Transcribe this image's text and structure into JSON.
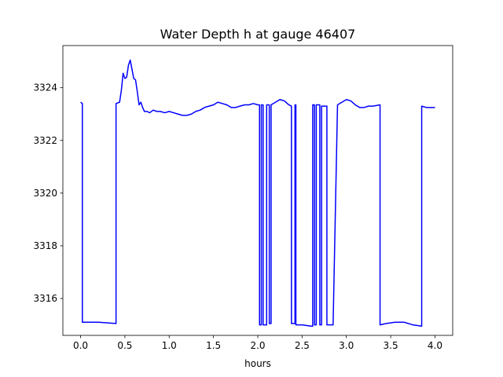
{
  "chart_data": {
    "type": "line",
    "title": "Water Depth h at gauge 46407",
    "xlabel": "hours",
    "ylabel": "",
    "xlim": [
      -0.2,
      4.2
    ],
    "ylim": [
      3314.6,
      3325.6
    ],
    "xticks": [
      0.0,
      0.5,
      1.0,
      1.5,
      2.0,
      2.5,
      3.0,
      3.5,
      4.0
    ],
    "xtick_labels": [
      "0.0",
      "0.5",
      "1.0",
      "1.5",
      "2.0",
      "2.5",
      "3.0",
      "3.5",
      "4.0"
    ],
    "yticks": [
      3316,
      3318,
      3320,
      3322,
      3324
    ],
    "ytick_labels": [
      "3316",
      "3318",
      "3320",
      "3322",
      "3324"
    ],
    "grid": false,
    "series": [
      {
        "color": "#0000ff",
        "x": [
          0.0,
          0.02,
          0.02,
          0.2,
          0.4,
          0.4,
          0.44,
          0.46,
          0.48,
          0.5,
          0.52,
          0.54,
          0.56,
          0.58,
          0.6,
          0.62,
          0.64,
          0.66,
          0.68,
          0.7,
          0.72,
          0.75,
          0.78,
          0.82,
          0.86,
          0.9,
          0.95,
          1.0,
          1.05,
          1.1,
          1.15,
          1.2,
          1.25,
          1.3,
          1.35,
          1.4,
          1.45,
          1.5,
          1.55,
          1.6,
          1.65,
          1.7,
          1.75,
          1.8,
          1.85,
          1.9,
          1.95,
          2.0,
          2.02,
          2.02,
          2.04,
          2.04,
          2.06,
          2.06,
          2.1,
          2.1,
          2.13,
          2.13,
          2.15,
          2.15,
          2.2,
          2.25,
          2.3,
          2.35,
          2.38,
          2.38,
          2.42,
          2.42,
          2.43,
          2.43,
          2.5,
          2.6,
          2.62,
          2.62,
          2.64,
          2.64,
          2.66,
          2.66,
          2.7,
          2.7,
          2.72,
          2.72,
          2.78,
          2.78,
          2.85,
          2.9,
          2.95,
          3.0,
          3.05,
          3.1,
          3.15,
          3.2,
          3.25,
          3.3,
          3.38,
          3.38,
          3.45,
          3.55,
          3.65,
          3.75,
          3.85,
          3.85,
          3.9,
          4.0
        ],
        "y": [
          3323.45,
          3323.4,
          3315.1,
          3315.1,
          3315.05,
          3323.4,
          3323.45,
          3323.9,
          3324.55,
          3324.35,
          3324.4,
          3324.85,
          3325.05,
          3324.7,
          3324.35,
          3324.3,
          3323.85,
          3323.35,
          3323.45,
          3323.25,
          3323.1,
          3323.1,
          3323.05,
          3323.15,
          3323.1,
          3323.1,
          3323.05,
          3323.1,
          3323.05,
          3323.0,
          3322.95,
          3322.95,
          3323.0,
          3323.1,
          3323.15,
          3323.25,
          3323.3,
          3323.35,
          3323.45,
          3323.4,
          3323.35,
          3323.25,
          3323.25,
          3323.3,
          3323.35,
          3323.35,
          3323.4,
          3323.35,
          3323.35,
          3315.0,
          3315.0,
          3323.35,
          3323.35,
          3315.0,
          3315.0,
          3323.35,
          3323.35,
          3315.05,
          3315.05,
          3323.35,
          3323.45,
          3323.55,
          3323.5,
          3323.35,
          3323.3,
          3315.05,
          3315.05,
          3323.35,
          3323.35,
          3315.0,
          3315.0,
          3314.95,
          3314.95,
          3323.35,
          3323.35,
          3315.0,
          3315.0,
          3323.35,
          3323.35,
          3315.0,
          3315.0,
          3323.3,
          3323.3,
          3315.0,
          3315.0,
          3323.35,
          3323.45,
          3323.55,
          3323.5,
          3323.35,
          3323.25,
          3323.25,
          3323.3,
          3323.3,
          3323.35,
          3315.0,
          3315.05,
          3315.1,
          3315.1,
          3315.0,
          3314.95,
          3323.3,
          3323.25,
          3323.25
        ]
      }
    ]
  }
}
